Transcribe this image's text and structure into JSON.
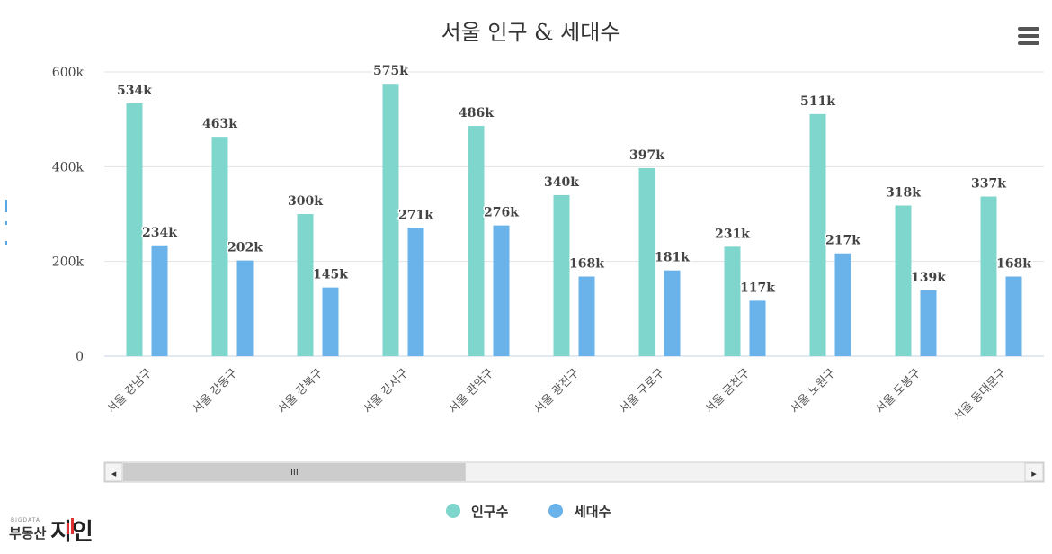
{
  "chart_data": {
    "type": "bar",
    "title": "서울 인구 & 세대수",
    "categories": [
      "서울 강남구",
      "서울 강동구",
      "서울 강북구",
      "서울 강서구",
      "서울 관악구",
      "서울 광진구",
      "서울 구로구",
      "서울 금천구",
      "서울 노원구",
      "서울 도봉구",
      "서울 동대문구"
    ],
    "series": [
      {
        "name": "인구수",
        "color": "#7fd6cc",
        "values": [
          534000,
          463000,
          300000,
          575000,
          486000,
          340000,
          397000,
          231000,
          511000,
          318000,
          337000
        ],
        "labels": [
          "534k",
          "463k",
          "300k",
          "575k",
          "486k",
          "340k",
          "397k",
          "231k",
          "511k",
          "318k",
          "337k"
        ]
      },
      {
        "name": "세대수",
        "color": "#69b3ea",
        "values": [
          234000,
          202000,
          145000,
          271000,
          276000,
          168000,
          181000,
          117000,
          217000,
          139000,
          168000
        ],
        "labels": [
          "234k",
          "202k",
          "145k",
          "271k",
          "276k",
          "168k",
          "181k",
          "117k",
          "217k",
          "139k",
          "168k"
        ]
      }
    ],
    "ylim": [
      0,
      600000
    ],
    "yticks": [
      0,
      200000,
      400000,
      600000
    ],
    "ytick_labels": [
      "0",
      "200k",
      "400k",
      "600k"
    ],
    "grid": true,
    "legend_position": "bottom-center"
  },
  "scrollbar": {
    "left_arrow": "◂",
    "right_arrow": "▸",
    "thumb_grip": "III",
    "thumb_fraction": 0.38
  },
  "menu_icon": "hamburger-icon",
  "brand": {
    "small": "BIGDATA",
    "main": "부동산",
    "big": "지인"
  }
}
